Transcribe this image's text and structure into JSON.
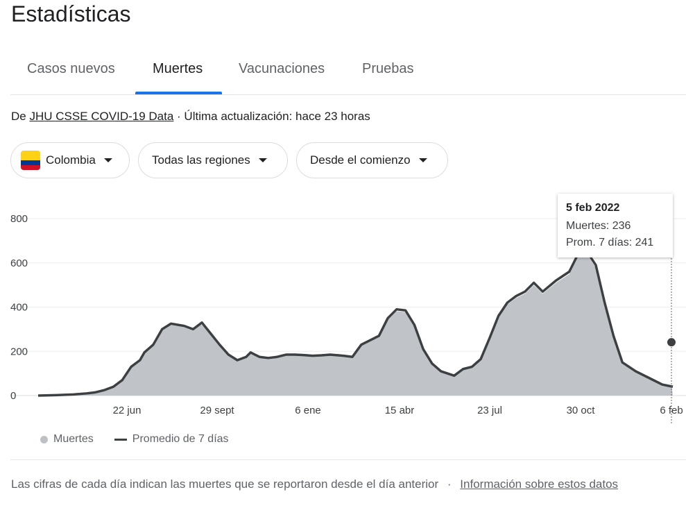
{
  "page": {
    "title": "Estadísticas"
  },
  "tabs": [
    {
      "label": "Casos nuevos"
    },
    {
      "label": "Muertes"
    },
    {
      "label": "Vacunaciones"
    },
    {
      "label": "Pruebas"
    }
  ],
  "active_tab": "Muertes",
  "source": {
    "prefix": "De ",
    "link": "JHU CSSE COVID-19 Data",
    "suffix": " · Última actualización: hace 23 horas"
  },
  "filters": {
    "country": "Colombia",
    "region": "Todas las regiones",
    "period": "Desde el comienzo"
  },
  "tooltip": {
    "date": "5 feb 2022",
    "deaths": "Muertes: 236",
    "avg": "Prom. 7 días: 241"
  },
  "legend": {
    "deaths": "Muertes",
    "avg": "Promedio de 7 días"
  },
  "footer": {
    "text": "Las cifras de cada día indican las muertes que se reportaron desde el día anterior",
    "separator": "·",
    "link": "Información sobre estos datos"
  },
  "colors": {
    "accent": "#1a73e8",
    "bars": "#bdc1c6",
    "line": "#3c4043"
  },
  "chart_data": {
    "type": "area",
    "x_labels": [
      "22 jun",
      "29 sept",
      "6 ene",
      "15 abr",
      "23 jul",
      "30 oct",
      "6 feb"
    ],
    "yticks": [
      0,
      200,
      400,
      600,
      800
    ],
    "ylim": [
      0,
      800
    ],
    "series": [
      {
        "name": "Promedio de 7 días",
        "x": [
          0,
          20,
          40,
          55,
          65,
          75,
          85,
          95,
          100,
          105,
          110,
          115,
          120,
          130,
          140,
          150,
          165,
          175,
          185,
          195,
          205,
          215,
          225,
          235,
          240,
          245,
          250,
          260,
          270,
          280,
          290,
          300,
          310,
          320,
          330,
          345,
          355,
          365,
          375,
          385,
          395,
          405,
          415,
          425,
          435,
          445,
          455,
          470,
          480,
          490,
          500,
          510,
          520,
          530,
          540,
          550,
          560,
          570,
          585,
          600,
          615,
          630,
          640,
          650,
          660,
          675,
          690,
          705,
          717
        ],
        "y": [
          0,
          2,
          5,
          10,
          15,
          25,
          40,
          70,
          100,
          130,
          145,
          160,
          195,
          230,
          300,
          325,
          315,
          300,
          330,
          280,
          230,
          185,
          160,
          175,
          195,
          185,
          175,
          170,
          175,
          185,
          185,
          183,
          180,
          182,
          185,
          180,
          175,
          230,
          250,
          270,
          350,
          390,
          385,
          320,
          210,
          145,
          110,
          90,
          120,
          130,
          165,
          260,
          360,
          420,
          450,
          470,
          510,
          470,
          520,
          560,
          680,
          590,
          420,
          270,
          150,
          110,
          80,
          50,
          40
        ]
      }
    ]
  }
}
